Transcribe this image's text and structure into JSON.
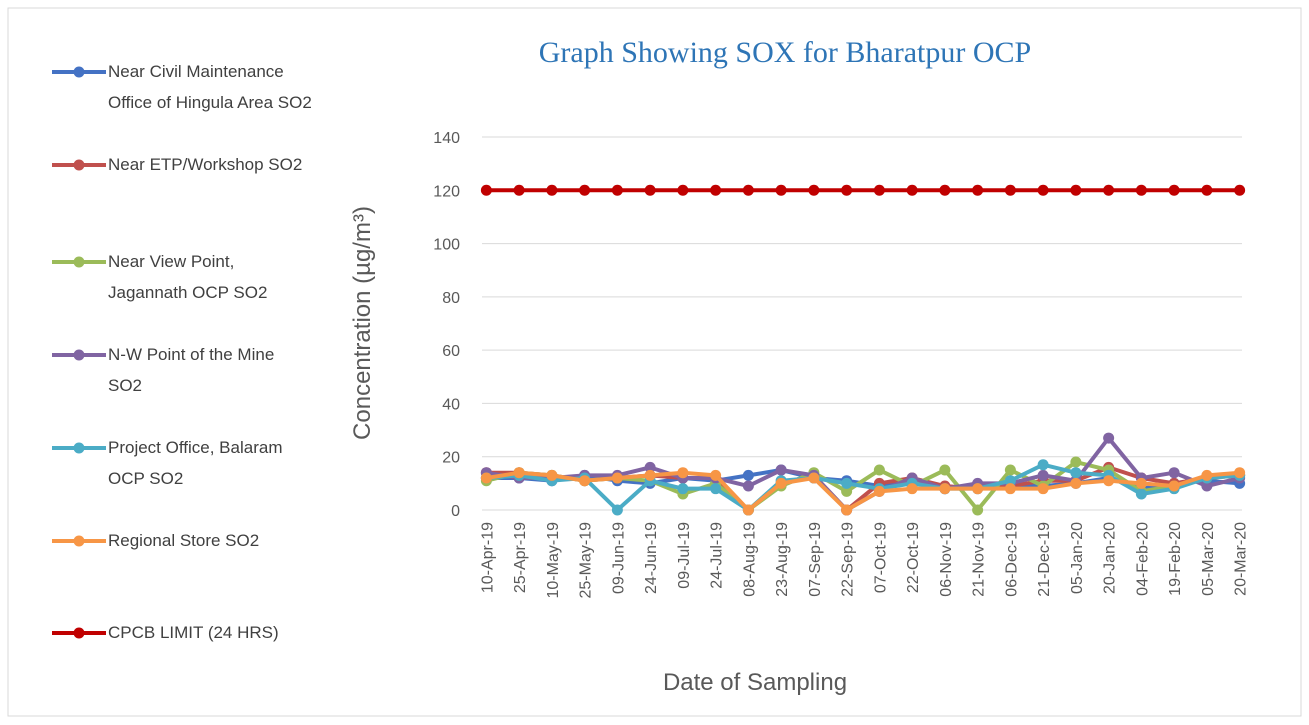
{
  "chart_data": {
    "type": "line",
    "title": "Graph Showing SOX for Bharatpur OCP",
    "x_label": "Date of Sampling",
    "y_label": "Concentration (µg/m³)",
    "categories": [
      "10-Apr-19",
      "25-Apr-19",
      "10-May-19",
      "25-May-19",
      "09-Jun-19",
      "24-Jun-19",
      "09-Jul-19",
      "24-Jul-19",
      "08-Aug-19",
      "23-Aug-19",
      "07-Sep-19",
      "22-Sep-19",
      "07-Oct-19",
      "22-Oct-19",
      "06-Nov-19",
      "21-Nov-19",
      "06-Dec-19",
      "21-Dec-19",
      "05-Jan-20",
      "20-Jan-20",
      "04-Feb-20",
      "19-Feb-20",
      "05-Mar-20",
      "20-Mar-20"
    ],
    "series": [
      {
        "name": "Near Civil Maintenance Office of Hingula Area SO2",
        "color": "#4472c4",
        "values": [
          12,
          12,
          11,
          13,
          11,
          10,
          12,
          11,
          13,
          15,
          12,
          11,
          9,
          11,
          8,
          9,
          9,
          9,
          10,
          12,
          8,
          10,
          11,
          10
        ]
      },
      {
        "name": "Near ETP/Workshop SO2",
        "color": "#c0504d",
        "values": [
          14,
          14,
          13,
          11,
          12,
          13,
          12,
          12,
          0,
          10,
          13,
          0,
          10,
          12,
          9,
          8,
          9,
          11,
          11,
          16,
          12,
          10,
          12,
          13
        ]
      },
      {
        "name": "Near View Point, Jagannath OCP SO2",
        "color": "#9bbb59",
        "values": [
          11,
          14,
          13,
          11,
          12,
          11,
          6,
          10,
          0,
          9,
          14,
          7,
          15,
          9,
          15,
          0,
          15,
          9,
          18,
          15,
          7,
          9,
          12,
          13
        ]
      },
      {
        "name": "N-W Point of the Mine SO2",
        "color": "#8064a2",
        "values": [
          14,
          12,
          12,
          13,
          13,
          16,
          12,
          12,
          9,
          15,
          13,
          0,
          7,
          12,
          8,
          10,
          10,
          13,
          11,
          27,
          12,
          14,
          9,
          12
        ]
      },
      {
        "name": "Project Office, Balaram OCP SO2",
        "color": "#4bacc6",
        "values": [
          12,
          13,
          11,
          12,
          0,
          11,
          8,
          8,
          0,
          11,
          12,
          10,
          8,
          10,
          8,
          8,
          11,
          17,
          14,
          13,
          6,
          8,
          12,
          13
        ]
      },
      {
        "name": "Regional Store SO2",
        "color": "#f79646",
        "values": [
          12,
          14,
          13,
          11,
          12,
          13,
          14,
          13,
          0,
          10,
          12,
          0,
          7,
          8,
          8,
          8,
          8,
          8,
          10,
          11,
          10,
          9,
          13,
          14
        ]
      },
      {
        "name": "CPCB LIMIT (24 HRS)",
        "color": "#c00000",
        "values": [
          120,
          120,
          120,
          120,
          120,
          120,
          120,
          120,
          120,
          120,
          120,
          120,
          120,
          120,
          120,
          120,
          120,
          120,
          120,
          120,
          120,
          120,
          120,
          120
        ]
      }
    ],
    "ylim": [
      0,
      140
    ],
    "yticks": [
      0,
      20,
      40,
      60,
      80,
      100,
      120,
      140
    ],
    "grid": true,
    "legend": "left"
  }
}
